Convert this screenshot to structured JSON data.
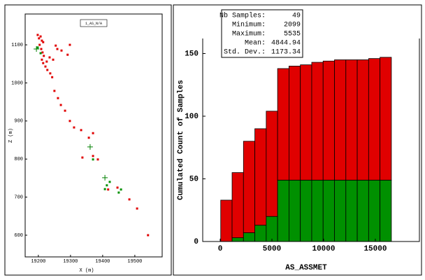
{
  "chart_data": [
    {
      "type": "scatter",
      "legend": "1_AS_N/A",
      "xlabel": "X (m)",
      "ylabel": "Z (m)",
      "xlim": [
        19159,
        19585
      ],
      "ylim": [
        543,
        1181
      ],
      "xticks": [
        19200,
        19300,
        19400,
        19500
      ],
      "yticks": [
        600,
        700,
        800,
        900,
        1000,
        1100
      ],
      "series": [
        {
          "color": "#e00000",
          "marker": "dot",
          "x": [
            19198,
            19202,
            19207,
            19211,
            19215,
            19204,
            19209,
            19213,
            19217,
            19211,
            19215,
            19222,
            19228,
            19237,
            19243,
            19259,
            19272,
            19291,
            19254,
            19250,
            19261,
            19270,
            19283,
            19298,
            19311,
            19333,
            19357,
            19337,
            19370,
            19385,
            19370,
            19417,
            19446,
            19483,
            19507,
            19541,
            19298,
            19246,
            19226,
            19235
          ],
          "y": [
            1126,
            1117,
            1122,
            1111,
            1107,
            1100,
            1089,
            1080,
            1071,
            1061,
            1052,
            1043,
            1034,
            1025,
            1015,
            1089,
            1085,
            1074,
            1098,
            979,
            960,
            942,
            927,
            900,
            883,
            876,
            856,
            804,
            808,
            799,
            868,
            720,
            725,
            694,
            670,
            600,
            1100,
            1061,
            1056,
            1067
          ]
        },
        {
          "color": "#009000",
          "marker": "dot",
          "x": [
            19198,
            19207,
            19370,
            19407,
            19413,
            19422,
            19450,
            19457
          ],
          "y": [
            1093,
            1078,
            799,
            721,
            731,
            740,
            712,
            720
          ]
        },
        {
          "color": "#008000",
          "marker": "cross",
          "x": [
            19194,
            19361,
            19407
          ],
          "y": [
            1089,
            832,
            751
          ]
        }
      ]
    },
    {
      "type": "histogram",
      "xlabel": "AS_ASSMET",
      "ylabel": "Cumulated Count of Samples",
      "xlim": [
        -1690,
        19260
      ],
      "ylim": [
        0,
        162
      ],
      "xticks": [
        0,
        5000,
        10000,
        15000
      ],
      "yticks": [
        0,
        50,
        100,
        150
      ],
      "bins": [
        50,
        1150,
        2250,
        3350,
        4450,
        5550,
        6650,
        7750,
        8850,
        9950,
        11050,
        12150,
        13250,
        14350,
        15450,
        16550
      ],
      "series": [
        {
          "color": "#009000",
          "values": [
            0,
            3,
            7,
            13,
            20,
            49,
            49,
            49,
            49,
            49,
            49,
            49,
            49,
            49,
            49
          ]
        },
        {
          "color": "#e00000",
          "values": [
            33,
            52,
            73,
            77,
            84,
            89,
            91,
            92,
            94,
            95,
            96,
            96,
            96,
            97,
            98
          ]
        }
      ],
      "stats": [
        {
          "label": "Nb Samples:",
          "value": 49
        },
        {
          "label": "Minimum:",
          "value": 2099
        },
        {
          "label": "Maximum:",
          "value": 5535
        },
        {
          "label": "Mean:",
          "value": 4844.94
        },
        {
          "label": "Std. Dev.:",
          "value": 1173.34
        }
      ]
    }
  ]
}
